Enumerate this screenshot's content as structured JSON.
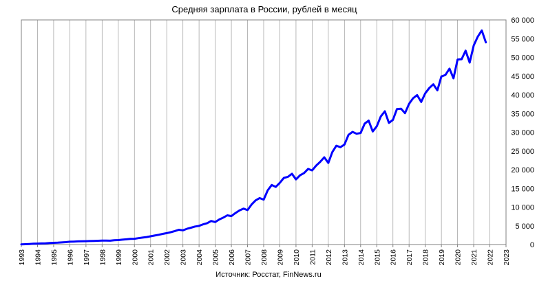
{
  "chart_data": {
    "type": "line",
    "title": "Средняя зарплата в России, рублей в месяц",
    "source": "Источник: Росстат, FinNews.ru",
    "xlabel": "",
    "ylabel": "",
    "x_tick_labels": [
      "1993",
      "1994",
      "1995",
      "1996",
      "1997",
      "1998",
      "1999",
      "2000",
      "2001",
      "2002",
      "2003",
      "2004",
      "2005",
      "2006",
      "2007",
      "2008",
      "2009",
      "2010",
      "2011",
      "2012",
      "2013",
      "2014",
      "2015",
      "2016",
      "2017",
      "2018",
      "2019",
      "2020",
      "2021",
      "2022",
      "2023"
    ],
    "y_tick_labels": [
      "0",
      "5 000",
      "10 000",
      "15 000",
      "20 000",
      "25 000",
      "30 000",
      "35 000",
      "40 000",
      "45 000",
      "50 000",
      "55 000",
      "60 000"
    ],
    "xlim": [
      1993,
      2023
    ],
    "ylim": [
      0,
      60000
    ],
    "y_axis_position": "right",
    "grid": true,
    "line_color": "#0000ff",
    "series": [
      {
        "x": [
          1993.0,
          1993.25,
          1993.5,
          1993.75,
          1994.0,
          1994.25,
          1994.5,
          1994.75,
          1995.0,
          1995.25,
          1995.5,
          1995.75,
          1996.0,
          1996.25,
          1996.5,
          1996.75,
          1997.0,
          1997.25,
          1997.5,
          1997.75,
          1998.0,
          1998.25,
          1998.5,
          1998.75,
          1999.0,
          1999.25,
          1999.5,
          1999.75,
          2000.0,
          2000.25,
          2000.5,
          2000.75,
          2001.0,
          2001.25,
          2001.5,
          2001.75,
          2002.0,
          2002.25,
          2002.5,
          2002.75,
          2003.0,
          2003.25,
          2003.5,
          2003.75,
          2004.0,
          2004.25,
          2004.5,
          2004.75,
          2005.0,
          2005.25,
          2005.5,
          2005.75,
          2006.0,
          2006.25,
          2006.5,
          2006.75,
          2007.0,
          2007.25,
          2007.5,
          2007.75,
          2008.0,
          2008.25,
          2008.5,
          2008.75,
          2009.0,
          2009.25,
          2009.5,
          2009.75,
          2010.0,
          2010.25,
          2010.5,
          2010.75,
          2011.0,
          2011.25,
          2011.5,
          2011.75,
          2012.0,
          2012.25,
          2012.5,
          2012.75,
          2013.0,
          2013.25,
          2013.5,
          2013.75,
          2014.0,
          2014.25,
          2014.5,
          2014.75,
          2015.0,
          2015.25,
          2015.5,
          2015.75,
          2016.0,
          2016.25,
          2016.5,
          2016.75,
          2017.0,
          2017.25,
          2017.5,
          2017.75,
          2018.0,
          2018.25,
          2018.5,
          2018.75,
          2019.0,
          2019.25,
          2019.5,
          2019.75,
          2020.0,
          2020.25,
          2020.5,
          2020.75,
          2021.0,
          2021.25,
          2021.5,
          2021.75
        ],
        "y": [
          60,
          100,
          150,
          220,
          250,
          300,
          330,
          400,
          450,
          500,
          560,
          650,
          760,
          790,
          840,
          870,
          900,
          930,
          980,
          1010,
          1050,
          1060,
          1030,
          1150,
          1200,
          1300,
          1400,
          1500,
          1550,
          1700,
          1850,
          2000,
          2200,
          2400,
          2600,
          2850,
          3050,
          3300,
          3600,
          3950,
          3800,
          4200,
          4500,
          4800,
          5000,
          5400,
          5700,
          6300,
          6000,
          6700,
          7200,
          7800,
          7600,
          8400,
          9100,
          9600,
          9200,
          10700,
          11800,
          12400,
          12000,
          14500,
          15900,
          15400,
          16500,
          17800,
          18100,
          18900,
          17400,
          18500,
          19100,
          20200,
          19800,
          21100,
          22100,
          23300,
          21800,
          24700,
          26400,
          26000,
          26700,
          29300,
          30100,
          29600,
          29800,
          32300,
          33100,
          30200,
          31600,
          34200,
          35600,
          32500,
          33300,
          36200,
          36300,
          35100,
          37600,
          39100,
          39900,
          38100,
          40400,
          41800,
          42800,
          41200,
          44900,
          45300,
          47000,
          44400,
          49400,
          49500,
          51800,
          48600,
          53200,
          55500,
          57200,
          54000
        ]
      }
    ]
  }
}
